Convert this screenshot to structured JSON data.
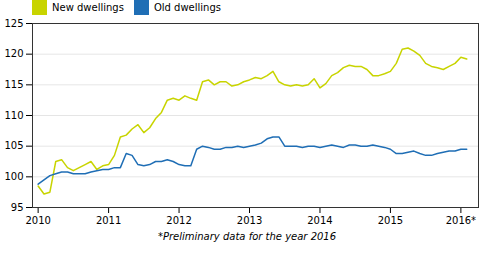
{
  "chart_data": {
    "type": "line",
    "footnote": "*Preliminary data for the year 2016",
    "x": [
      2010.0,
      2010.083,
      2010.167,
      2010.25,
      2010.333,
      2010.417,
      2010.5,
      2010.583,
      2010.667,
      2010.75,
      2010.833,
      2010.917,
      2011.0,
      2011.083,
      2011.167,
      2011.25,
      2011.333,
      2011.417,
      2011.5,
      2011.583,
      2011.667,
      2011.75,
      2011.833,
      2011.917,
      2012.0,
      2012.083,
      2012.167,
      2012.25,
      2012.333,
      2012.417,
      2012.5,
      2012.583,
      2012.667,
      2012.75,
      2012.833,
      2012.917,
      2013.0,
      2013.083,
      2013.167,
      2013.25,
      2013.333,
      2013.417,
      2013.5,
      2013.583,
      2013.667,
      2013.75,
      2013.833,
      2013.917,
      2014.0,
      2014.083,
      2014.167,
      2014.25,
      2014.333,
      2014.417,
      2014.5,
      2014.583,
      2014.667,
      2014.75,
      2014.833,
      2014.917,
      2015.0,
      2015.083,
      2015.167,
      2015.25,
      2015.333,
      2015.417,
      2015.5,
      2015.583,
      2015.667,
      2015.75,
      2015.833,
      2015.917,
      2016.0,
      2016.083
    ],
    "series": [
      {
        "name": "New dwellings",
        "color": "#c8d400",
        "values": [
          98.5,
          97.2,
          97.5,
          102.5,
          102.8,
          101.5,
          101.0,
          101.5,
          102.0,
          102.5,
          101.2,
          101.8,
          102.0,
          103.5,
          106.5,
          106.8,
          107.8,
          108.5,
          107.2,
          108.0,
          109.5,
          110.5,
          112.5,
          112.8,
          112.5,
          113.2,
          112.8,
          112.5,
          115.5,
          115.8,
          115.0,
          115.5,
          115.5,
          114.8,
          115.0,
          115.5,
          115.8,
          116.2,
          116.0,
          116.5,
          117.2,
          115.5,
          115.0,
          114.8,
          115.0,
          114.8,
          115.0,
          116.0,
          114.5,
          115.2,
          116.5,
          117.0,
          117.8,
          118.2,
          118.0,
          118.0,
          117.5,
          116.5,
          116.5,
          116.8,
          117.2,
          118.5,
          120.8,
          121.0,
          120.5,
          119.8,
          118.5,
          118.0,
          117.8,
          117.5,
          118.0,
          118.5,
          119.5,
          119.2
        ]
      },
      {
        "name": "Old dwellings",
        "color": "#1f6eb5",
        "values": [
          98.8,
          99.5,
          100.2,
          100.5,
          100.8,
          100.8,
          100.5,
          100.5,
          100.5,
          100.8,
          101.0,
          101.2,
          101.2,
          101.5,
          101.5,
          103.8,
          103.5,
          102.0,
          101.8,
          102.0,
          102.5,
          102.5,
          102.8,
          102.5,
          102.0,
          101.8,
          101.8,
          104.5,
          105.0,
          104.8,
          104.5,
          104.5,
          104.8,
          104.8,
          105.0,
          104.8,
          105.0,
          105.2,
          105.5,
          106.2,
          106.5,
          106.5,
          105.0,
          105.0,
          105.0,
          104.8,
          105.0,
          105.0,
          104.8,
          105.0,
          105.2,
          105.0,
          104.8,
          105.2,
          105.2,
          105.0,
          105.0,
          105.2,
          105.0,
          104.8,
          104.5,
          103.8,
          103.8,
          104.0,
          104.2,
          103.8,
          103.5,
          103.5,
          103.8,
          104.0,
          104.2,
          104.2,
          104.5,
          104.5
        ]
      }
    ],
    "xlim": [
      2009.92,
      2016.25
    ],
    "xticks": [
      2010,
      2011,
      2012,
      2013,
      2014,
      2015,
      {
        "value": 2016,
        "label": "2016*"
      }
    ],
    "ylim": [
      95,
      125
    ],
    "yticks": [
      95,
      100,
      105,
      110,
      115,
      120,
      125
    ],
    "grid": "y",
    "legend": "upper left"
  }
}
